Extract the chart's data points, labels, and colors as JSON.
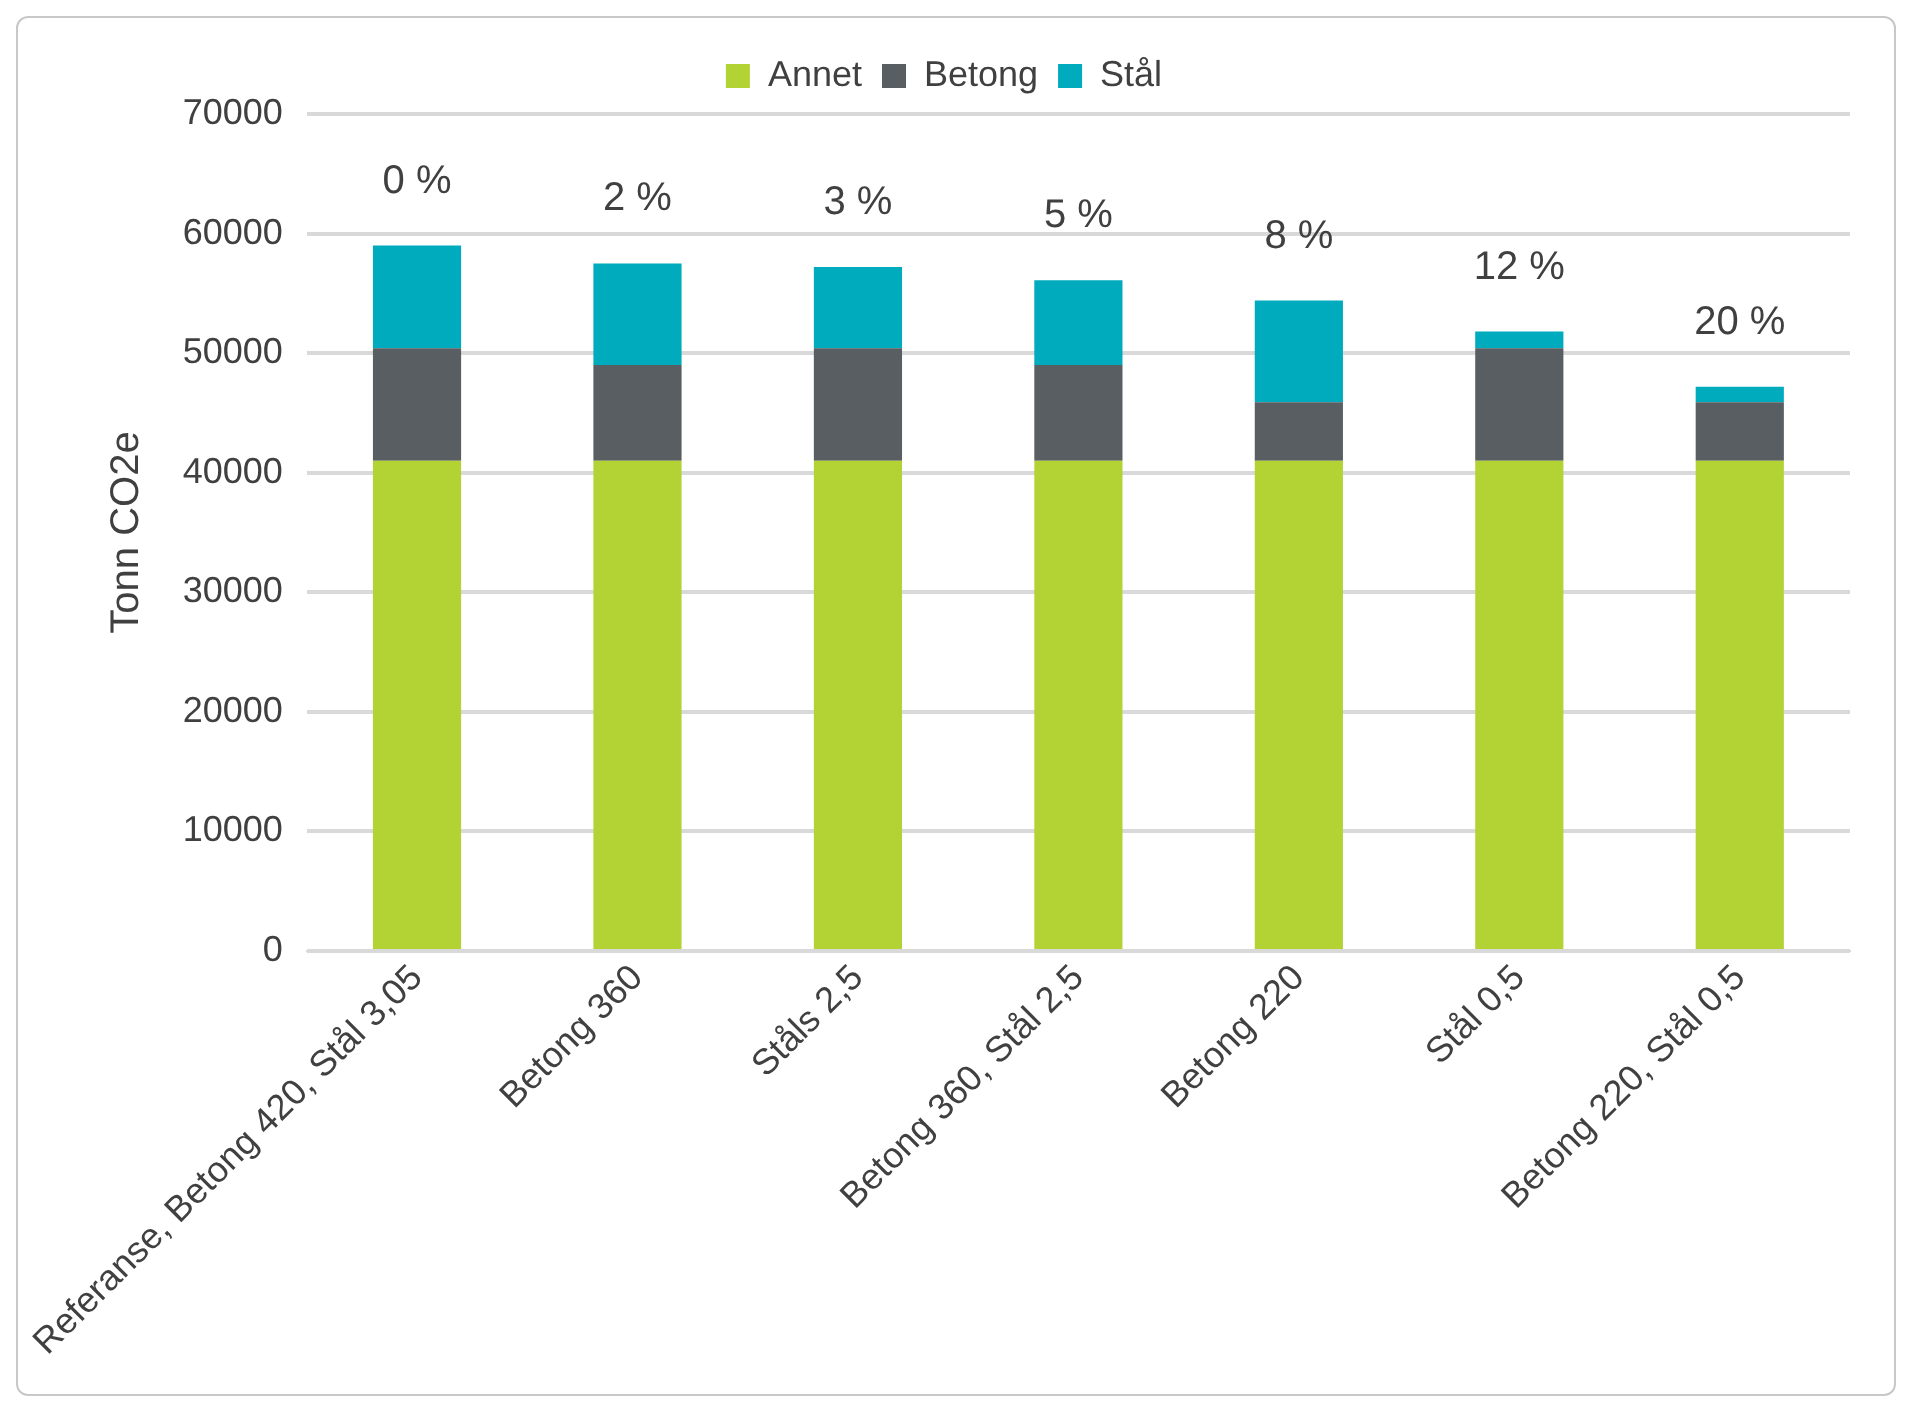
{
  "chart_data": {
    "type": "bar",
    "ylabel": "Tonn CO2e",
    "stacked": true,
    "legend": "top",
    "grid": "y",
    "categories": [
      "Referanse, Betong 420, Stål 3,05",
      "Betong 360",
      "Ståls 2,5",
      "Betong 360, Stål 2,5",
      "Betong 220",
      "Stål 0,5",
      "Betong 220, Stål 0,5"
    ],
    "series": [
      {
        "name": "Annet",
        "color": "#b3d335",
        "values": [
          41000,
          41000,
          41000,
          41000,
          41000,
          41000,
          41000
        ]
      },
      {
        "name": "Betong",
        "color": "#595e62",
        "values": [
          9400,
          8000,
          9400,
          8000,
          4900,
          9400,
          4900
        ]
      },
      {
        "name": "Stål",
        "color": "#00abbd",
        "values": [
          8600,
          8500,
          6800,
          7100,
          8500,
          1400,
          1300
        ]
      }
    ],
    "ylim": [
      0,
      70000
    ],
    "yticks": [
      0,
      10000,
      20000,
      30000,
      40000,
      50000,
      60000,
      70000
    ],
    "annotations": [
      "0 %",
      "2 %",
      "3 %",
      "5 %",
      "8 %",
      "12 %",
      "20 %"
    ]
  }
}
